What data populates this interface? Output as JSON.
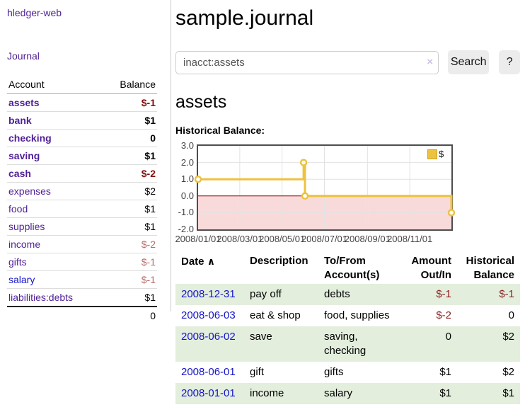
{
  "app": {
    "brand": "hledger-web",
    "nav_journal": "Journal"
  },
  "sidebar": {
    "header": {
      "account": "Account",
      "balance": "Balance"
    },
    "rows": [
      {
        "account": "assets",
        "balance": "$-1",
        "depth": 1,
        "emphasis": true,
        "balance_style": "neg-strong",
        "link_color": "purple"
      },
      {
        "account": "bank",
        "balance": "$1",
        "depth": 2,
        "emphasis": true,
        "balance_style": "normal",
        "link_color": "purple"
      },
      {
        "account": "checking",
        "balance": "0",
        "depth": 3,
        "emphasis": true,
        "balance_style": "normal",
        "link_color": "purple"
      },
      {
        "account": "saving",
        "balance": "$1",
        "depth": 3,
        "emphasis": true,
        "balance_style": "normal",
        "link_color": "purple"
      },
      {
        "account": "cash",
        "balance": "$-2",
        "depth": 2,
        "emphasis": true,
        "balance_style": "neg-strong",
        "link_color": "purple"
      },
      {
        "account": "expenses",
        "balance": "$2",
        "depth": 1,
        "emphasis": false,
        "balance_style": "normal",
        "link_color": "purple"
      },
      {
        "account": "food",
        "balance": "$1",
        "depth": 2,
        "emphasis": false,
        "balance_style": "normal",
        "link_color": "purple"
      },
      {
        "account": "supplies",
        "balance": "$1",
        "depth": 2,
        "emphasis": false,
        "balance_style": "normal",
        "link_color": "purple"
      },
      {
        "account": "income",
        "balance": "$-2",
        "depth": 1,
        "emphasis": false,
        "balance_style": "neg-muted",
        "link_color": "purple"
      },
      {
        "account": "gifts",
        "balance": "$-1",
        "depth": 2,
        "emphasis": false,
        "balance_style": "neg-muted",
        "link_color": "purple"
      },
      {
        "account": "salary",
        "balance": "$-1",
        "depth": 2,
        "emphasis": false,
        "balance_style": "neg-muted",
        "link_color": "blue"
      },
      {
        "account": "liabilities:debts",
        "balance": "$1",
        "depth": 1,
        "emphasis": false,
        "balance_style": "normal",
        "link_color": "purple"
      }
    ],
    "total": "0"
  },
  "main": {
    "title": "sample.journal",
    "search": {
      "value": "inacct:assets",
      "clear_icon": "×",
      "button_label": "Search",
      "help_label": "?"
    },
    "account_heading": "assets",
    "chart_label": "Historical Balance:"
  },
  "chart_data": {
    "type": "line",
    "title": "Historical Balance",
    "step": true,
    "series": [
      {
        "name": "$",
        "color": "#edc240",
        "points": [
          {
            "date": "2008/01/01",
            "day": 0,
            "value": 1
          },
          {
            "date": "2008/06/01",
            "day": 152,
            "value": 2
          },
          {
            "date": "2008/06/03",
            "day": 154,
            "value": 0
          },
          {
            "date": "2008/12/31",
            "day": 365,
            "value": -1
          }
        ]
      }
    ],
    "x_ticks": [
      {
        "label": "2008/01/01",
        "day": 0
      },
      {
        "label": "2008/03/01",
        "day": 60
      },
      {
        "label": "2008/05/01",
        "day": 121
      },
      {
        "label": "2008/07/01",
        "day": 182
      },
      {
        "label": "2008/09/01",
        "day": 244
      },
      {
        "label": "2008/11/01",
        "day": 305
      }
    ],
    "y_ticks": [
      "3.0",
      "2.0",
      "1.0",
      "0.0",
      "-1.0",
      "-2.0"
    ],
    "xlim_days": [
      0,
      365
    ],
    "ylim": [
      -2,
      3
    ],
    "grid": true,
    "legend_position": "top-right"
  },
  "table": {
    "header": {
      "date": "Date",
      "sort_arrow": "∧",
      "description": "Description",
      "tofrom_line1": "To/From",
      "tofrom_line2": "Account(s)",
      "amount_line1": "Amount",
      "amount_line2": "Out/In",
      "balance_line1": "Historical",
      "balance_line2": "Balance"
    },
    "rows": [
      {
        "date": "2008-12-31",
        "description": "pay off",
        "accounts": "debts",
        "amount": "$-1",
        "amount_negative": true,
        "balance": "$-1",
        "balance_negative": true
      },
      {
        "date": "2008-06-03",
        "description": "eat & shop",
        "accounts": "food, supplies",
        "amount": "$-2",
        "amount_negative": true,
        "balance": "0",
        "balance_negative": false
      },
      {
        "date": "2008-06-02",
        "description": "save",
        "accounts": "saving, checking",
        "amount": "0",
        "amount_negative": false,
        "balance": "$2",
        "balance_negative": false
      },
      {
        "date": "2008-06-01",
        "description": "gift",
        "accounts": "gifts",
        "amount": "$1",
        "amount_negative": false,
        "balance": "$2",
        "balance_negative": false
      },
      {
        "date": "2008-01-01",
        "description": "income",
        "accounts": "salary",
        "amount": "$1",
        "amount_negative": false,
        "balance": "$1",
        "balance_negative": false
      }
    ]
  },
  "colors": {
    "link_purple": "#4f1f96",
    "link_blue": "#1414cc",
    "negative_strong": "#7f0d0d",
    "negative_muted": "#b96a6a",
    "negative_table": "#8b2222",
    "row_green": "#e3eedd",
    "series_gold": "#edc240",
    "negative_region_pink": "#f9dada",
    "zero_line_red": "#8b0000",
    "grid_gray": "#e2e2e2",
    "plot_border": "#4d4d4d"
  }
}
